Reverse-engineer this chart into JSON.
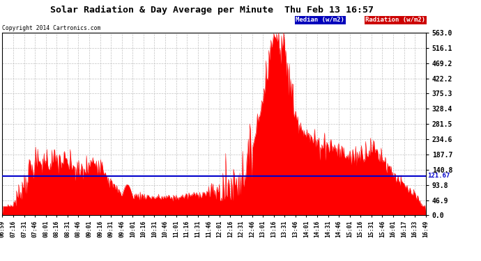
{
  "title": "Solar Radiation & Day Average per Minute  Thu Feb 13 16:57",
  "copyright": "Copyright 2014 Cartronics.com",
  "legend_median": "Median (w/m2)",
  "legend_radiation": "Radiation (w/m2)",
  "ymin": 0.0,
  "ymax": 563.0,
  "yticks": [
    0.0,
    46.9,
    93.8,
    140.8,
    187.7,
    234.6,
    281.5,
    328.4,
    375.3,
    422.2,
    469.2,
    516.1,
    563.0
  ],
  "ytick_labels": [
    "0.0",
    "46.9",
    "93.8",
    "140.8",
    "187.7",
    "234.6",
    "281.5",
    "328.4",
    "375.3",
    "422.2",
    "469.2",
    "516.1",
    "563.0"
  ],
  "median_value": 121.67,
  "median_label": "121.67",
  "background_color": "#ffffff",
  "plot_bg_color": "#ffffff",
  "grid_color": "#bbbbbb",
  "fill_color": "#ff0000",
  "line_color": "#ff0000",
  "median_line_color": "#0000cc",
  "title_color": "#000000",
  "x_tick_labels": [
    "06:59",
    "07:16",
    "07:31",
    "07:46",
    "08:01",
    "08:16",
    "08:31",
    "08:46",
    "09:01",
    "09:16",
    "09:31",
    "09:46",
    "10:01",
    "10:16",
    "10:31",
    "10:46",
    "11:01",
    "11:16",
    "11:31",
    "11:46",
    "12:01",
    "12:16",
    "12:31",
    "12:46",
    "13:01",
    "13:16",
    "13:31",
    "13:46",
    "14:01",
    "14:16",
    "14:31",
    "14:46",
    "15:01",
    "15:16",
    "15:31",
    "15:46",
    "16:01",
    "16:17",
    "16:33",
    "16:49"
  ]
}
